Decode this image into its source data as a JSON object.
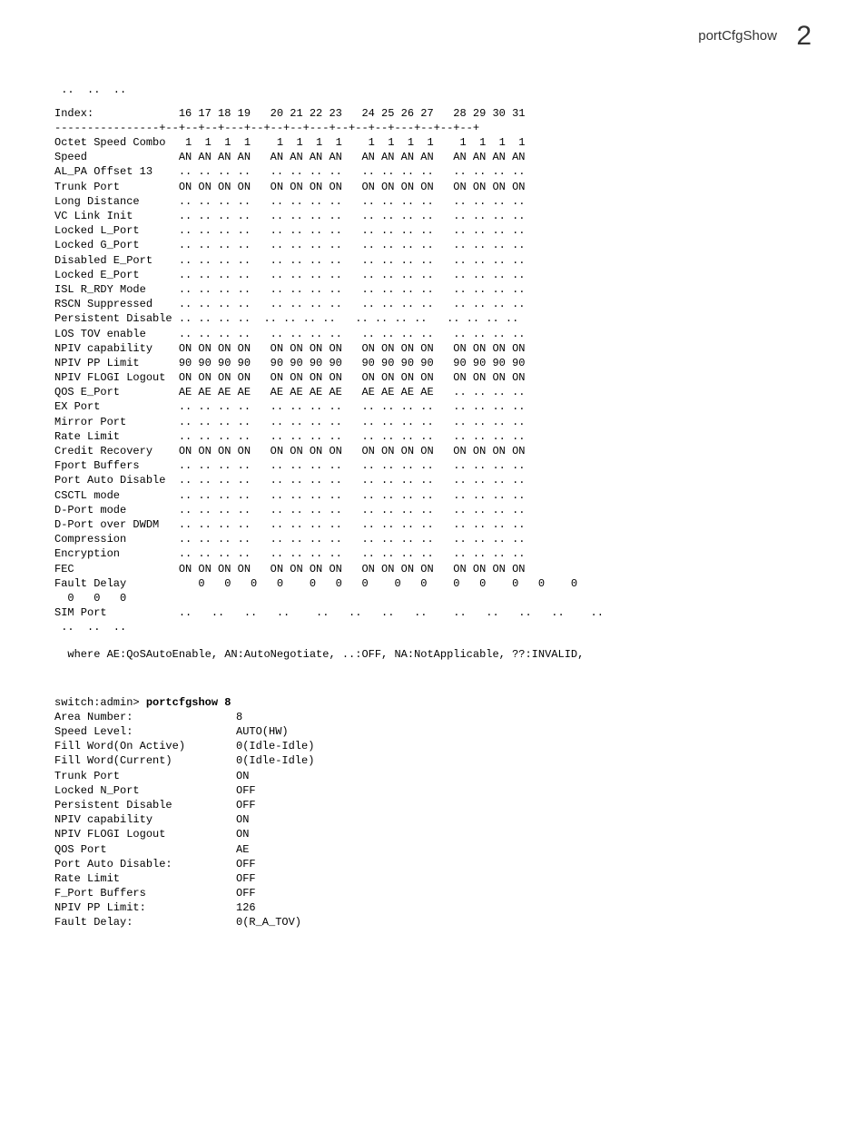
{
  "page": {
    "header_title": "portCfgShow",
    "chapter_number": "2"
  },
  "top_dots_line": " ..  ..  ..",
  "matrix": {
    "index_label": "Index:",
    "index_cols": "16 17 18 19   20 21 22 23   24 25 26 27   28 29 30 31",
    "separator": "----------------+--+--+--+---+--+--+--+---+--+--+--+---+--+--+--+",
    "rows": [
      {
        "label": "Octet Speed Combo",
        "v": " 1  1  1  1    1  1  1  1    1  1  1  1    1  1  1  1"
      },
      {
        "label": "Speed            ",
        "v": "AN AN AN AN   AN AN AN AN   AN AN AN AN   AN AN AN AN"
      },
      {
        "label": "AL_PA Offset 13  ",
        "v": ".. .. .. ..   .. .. .. ..   .. .. .. ..   .. .. .. .."
      },
      {
        "label": "Trunk Port       ",
        "v": "ON ON ON ON   ON ON ON ON   ON ON ON ON   ON ON ON ON"
      },
      {
        "label": "Long Distance    ",
        "v": ".. .. .. ..   .. .. .. ..   .. .. .. ..   .. .. .. .."
      },
      {
        "label": "VC Link Init     ",
        "v": ".. .. .. ..   .. .. .. ..   .. .. .. ..   .. .. .. .."
      },
      {
        "label": "Locked L_Port    ",
        "v": ".. .. .. ..   .. .. .. ..   .. .. .. ..   .. .. .. .."
      },
      {
        "label": "Locked G_Port    ",
        "v": ".. .. .. ..   .. .. .. ..   .. .. .. ..   .. .. .. .."
      },
      {
        "label": "Disabled E_Port  ",
        "v": ".. .. .. ..   .. .. .. ..   .. .. .. ..   .. .. .. .."
      },
      {
        "label": "Locked E_Port    ",
        "v": ".. .. .. ..   .. .. .. ..   .. .. .. ..   .. .. .. .."
      },
      {
        "label": "ISL R_RDY Mode   ",
        "v": ".. .. .. ..   .. .. .. ..   .. .. .. ..   .. .. .. .."
      },
      {
        "label": "RSCN Suppressed  ",
        "v": ".. .. .. ..   .. .. .. ..   .. .. .. ..   .. .. .. .."
      },
      {
        "label": "Persistent Disable",
        "v": ".. .. .. ..  .. .. .. ..   .. .. .. ..   .. .. .. .."
      },
      {
        "label": "LOS TOV enable   ",
        "v": ".. .. .. ..   .. .. .. ..   .. .. .. ..   .. .. .. .."
      },
      {
        "label": "NPIV capability  ",
        "v": "ON ON ON ON   ON ON ON ON   ON ON ON ON   ON ON ON ON"
      },
      {
        "label": "NPIV PP Limit    ",
        "v": "90 90 90 90   90 90 90 90   90 90 90 90   90 90 90 90"
      },
      {
        "label": "NPIV FLOGI Logout",
        "v": "ON ON ON ON   ON ON ON ON   ON ON ON ON   ON ON ON ON"
      },
      {
        "label": "QOS E_Port       ",
        "v": "AE AE AE AE   AE AE AE AE   AE AE AE AE   .. .. .. .."
      },
      {
        "label": "EX Port          ",
        "v": ".. .. .. ..   .. .. .. ..   .. .. .. ..   .. .. .. .."
      },
      {
        "label": "Mirror Port      ",
        "v": ".. .. .. ..   .. .. .. ..   .. .. .. ..   .. .. .. .."
      },
      {
        "label": "Rate Limit       ",
        "v": ".. .. .. ..   .. .. .. ..   .. .. .. ..   .. .. .. .."
      },
      {
        "label": "Credit Recovery  ",
        "v": "ON ON ON ON   ON ON ON ON   ON ON ON ON   ON ON ON ON"
      },
      {
        "label": "Fport Buffers    ",
        "v": ".. .. .. ..   .. .. .. ..   .. .. .. ..   .. .. .. .."
      },
      {
        "label": "Port Auto Disable",
        "v": ".. .. .. ..   .. .. .. ..   .. .. .. ..   .. .. .. .."
      },
      {
        "label": "CSCTL mode       ",
        "v": ".. .. .. ..   .. .. .. ..   .. .. .. ..   .. .. .. .."
      },
      {
        "label": "D-Port mode      ",
        "v": ".. .. .. ..   .. .. .. ..   .. .. .. ..   .. .. .. .."
      },
      {
        "label": "D-Port over DWDM ",
        "v": ".. .. .. ..   .. .. .. ..   .. .. .. ..   .. .. .. .."
      },
      {
        "label": "Compression      ",
        "v": ".. .. .. ..   .. .. .. ..   .. .. .. ..   .. .. .. .."
      },
      {
        "label": "Encryption       ",
        "v": ".. .. .. ..   .. .. .. ..   .. .. .. ..   .. .. .. .."
      },
      {
        "label": "FEC              ",
        "v": "ON ON ON ON   ON ON ON ON   ON ON ON ON   ON ON ON ON"
      }
    ],
    "fault_delay_line": "Fault Delay           0   0   0   0    0   0   0    0   0    0   0    0   0    0",
    "fault_delay_cont": "  0   0   0",
    "sim_port_line": "SIM Port           ..   ..   ..   ..    ..   ..   ..   ..    ..   ..   ..   ..    ..",
    "bottom_dots_line": " ..  ..  .."
  },
  "legend": "  where AE:QoSAutoEnable, AN:AutoNegotiate, ..:OFF, NA:NotApplicable, ??:INVALID,",
  "command": {
    "prompt": "switch:admin> ",
    "cmd": "portcfgshow 8"
  },
  "details": [
    {
      "k": "Area Number:",
      "v": "8"
    },
    {
      "k": "Speed Level:",
      "v": "AUTO(HW)"
    },
    {
      "k": "Fill Word(On Active)",
      "v": "0(Idle-Idle)"
    },
    {
      "k": "Fill Word(Current)",
      "v": "0(Idle-Idle)"
    },
    {
      "k": "Trunk Port",
      "v": "ON"
    },
    {
      "k": "Locked N_Port",
      "v": "OFF"
    },
    {
      "k": "Persistent Disable",
      "v": "OFF"
    },
    {
      "k": "NPIV capability",
      "v": "ON"
    },
    {
      "k": "NPIV FLOGI Logout",
      "v": "ON"
    },
    {
      "k": "QOS Port",
      "v": "AE"
    },
    {
      "k": "Port Auto Disable:",
      "v": "OFF"
    },
    {
      "k": "Rate Limit",
      "v": "OFF"
    },
    {
      "k": "F_Port Buffers",
      "v": "OFF"
    },
    {
      "k": "NPIV PP Limit:",
      "v": "126"
    },
    {
      "k": "Fault Delay:",
      "v": "0(R_A_TOV)"
    }
  ]
}
